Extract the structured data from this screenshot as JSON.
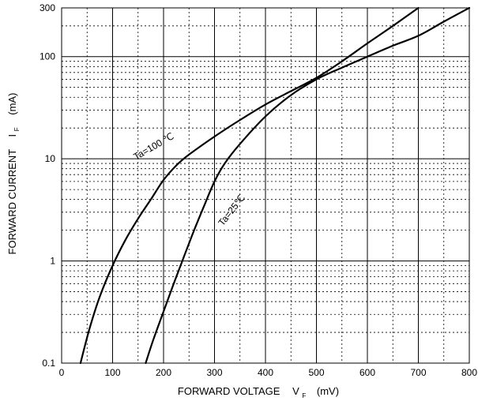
{
  "chart_data": {
    "type": "line",
    "xlabel": "FORWARD VOLTAGE",
    "xlabel_symbol": "V",
    "xlabel_subscript": "F",
    "xlabel_unit": "(mV)",
    "ylabel": "FORWARD CURRENT",
    "ylabel_symbol": "I",
    "ylabel_subscript": "F",
    "ylabel_unit": "(mA)",
    "xlim": [
      0,
      800
    ],
    "ylim": [
      0.1,
      300
    ],
    "yscale": "log",
    "grid": true,
    "x_ticks": [
      0,
      100,
      200,
      300,
      400,
      500,
      600,
      700,
      800
    ],
    "x_tick_labels": [
      "0",
      "100",
      "200",
      "300",
      "400",
      "500",
      "600",
      "700",
      "800"
    ],
    "y_ticks": [
      0.1,
      1,
      10,
      100,
      300
    ],
    "y_tick_labels": [
      "0.1",
      "1",
      "10",
      "100",
      "300"
    ],
    "series": [
      {
        "name": "Ta=100 ℃",
        "x": [
          37,
          55,
          75,
          100,
          125,
          150,
          175,
          200,
          225,
          250,
          300,
          350,
          400,
          450,
          500,
          550,
          600,
          650,
          700
        ],
        "y": [
          0.1,
          0.22,
          0.45,
          0.9,
          1.6,
          2.6,
          4.0,
          6.2,
          8.6,
          11,
          16.5,
          24,
          34,
          46,
          62,
          90,
          135,
          200,
          300
        ]
      },
      {
        "name": "Ta=25℃",
        "x": [
          165,
          180,
          200,
          220,
          240,
          260,
          280,
          300,
          320,
          350,
          400,
          450,
          500,
          550,
          600,
          650,
          700,
          750,
          800
        ],
        "y": [
          0.1,
          0.17,
          0.32,
          0.6,
          1.1,
          2.0,
          3.5,
          6.0,
          9.0,
          14,
          26,
          42,
          60,
          78,
          100,
          128,
          160,
          220,
          300
        ]
      }
    ]
  }
}
